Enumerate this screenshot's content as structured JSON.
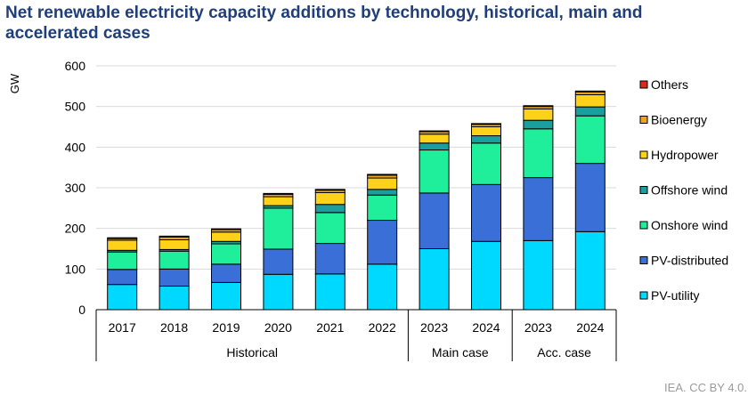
{
  "title": "Net renewable electricity capacity additions by technology, historical, main and accelerated cases",
  "credit": "IEA. CC BY 4.0.",
  "chart_data": {
    "type": "bar",
    "stacked": true,
    "ylabel": "GW",
    "ylim": [
      0,
      600
    ],
    "yticks": [
      0,
      100,
      200,
      300,
      400,
      500,
      600
    ],
    "categories": [
      "2017",
      "2018",
      "2019",
      "2020",
      "2021",
      "2022",
      "2023",
      "2024",
      "2023",
      "2024"
    ],
    "groups": [
      {
        "label": "Historical",
        "count": 6
      },
      {
        "label": "Main case",
        "count": 2
      },
      {
        "label": "Acc. case",
        "count": 2
      }
    ],
    "series": [
      {
        "name": "PV-utility",
        "color": "#00d9ff",
        "values": [
          62,
          58,
          67,
          87,
          88,
          112,
          150,
          168,
          170,
          192
        ]
      },
      {
        "name": "PV-distributed",
        "color": "#3a6fd8",
        "values": [
          37,
          42,
          45,
          62,
          75,
          108,
          137,
          140,
          155,
          168
        ]
      },
      {
        "name": "Onshore wind",
        "color": "#1fef9a",
        "values": [
          43,
          44,
          50,
          101,
          76,
          62,
          106,
          102,
          120,
          117
        ]
      },
      {
        "name": "Offshore wind",
        "color": "#1a9e9e",
        "values": [
          4,
          4,
          6,
          6,
          20,
          14,
          17,
          18,
          21,
          22
        ]
      },
      {
        "name": "Hydropower",
        "color": "#ffd21a",
        "values": [
          25,
          24,
          23,
          22,
          29,
          28,
          22,
          22,
          28,
          30
        ]
      },
      {
        "name": "Bioenergy",
        "color": "#f2a51a",
        "values": [
          4,
          7,
          6,
          6,
          6,
          7,
          6,
          6,
          6,
          7
        ]
      },
      {
        "name": "Others",
        "color": "#e0271f",
        "values": [
          2,
          2,
          2,
          2,
          2,
          2,
          2,
          2,
          2,
          2
        ]
      }
    ],
    "legend_order": [
      "Others",
      "Bioenergy",
      "Hydropower",
      "Offshore wind",
      "Onshore wind",
      "PV-distributed",
      "PV-utility"
    ],
    "legend_position": "right"
  }
}
